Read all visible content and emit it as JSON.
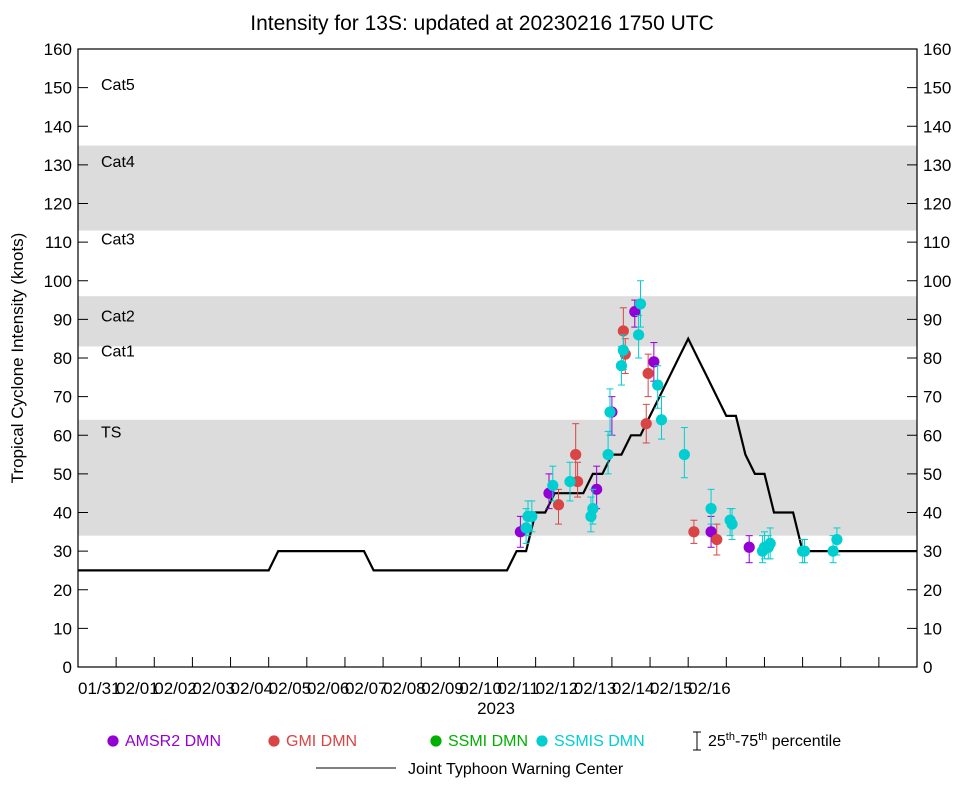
{
  "chart_data": {
    "type": "scatter",
    "title": "Intensity for 13S: updated at 20230216 1750 UTC",
    "xlabel": "2023",
    "ylabel": "Tropical Cyclone Intensity (knots)",
    "xlim": [
      0,
      22
    ],
    "ylim": [
      0,
      160
    ],
    "x_tick_values": [
      0,
      1,
      2,
      3,
      4,
      5,
      6,
      7,
      8,
      9,
      10,
      11,
      12,
      13,
      14,
      15,
      16,
      17,
      18,
      19,
      20,
      21,
      22
    ],
    "x_tick_labels": [
      "01/31",
      "02/01",
      "02/02",
      "02/03",
      "02/04",
      "02/05",
      "02/06",
      "02/07",
      "02/08",
      "02/09",
      "02/10",
      "02/11",
      "02/12",
      "02/13",
      "02/14",
      "02/15",
      "02/16"
    ],
    "x_tick_label_positions": [
      0,
      1,
      2,
      3,
      4,
      5,
      6,
      7,
      8,
      9,
      10,
      11,
      12,
      13,
      14,
      15,
      16
    ],
    "y_ticks": [
      0,
      10,
      20,
      30,
      40,
      50,
      60,
      70,
      80,
      90,
      100,
      110,
      120,
      130,
      140,
      150,
      160
    ],
    "categories_bands": [
      {
        "label": "TS",
        "lo": 34,
        "hi": 64,
        "shaded": true
      },
      {
        "label": "Cat1",
        "lo": 64,
        "hi": 83,
        "shaded": false
      },
      {
        "label": "Cat2",
        "lo": 83,
        "hi": 96,
        "shaded": true
      },
      {
        "label": "Cat3",
        "lo": 96,
        "hi": 113,
        "shaded": false
      },
      {
        "label": "Cat4",
        "lo": 113,
        "hi": 135,
        "shaded": true
      },
      {
        "label": "Cat5",
        "lo": 135,
        "hi": 160,
        "shaded": false
      }
    ],
    "band_label_values": [
      61,
      82,
      91,
      111,
      131,
      151
    ],
    "jtwc": {
      "name": "Joint Typhoon Warning Center",
      "color": "#000000",
      "x": [
        0,
        5,
        5.25,
        7.5,
        7.75,
        11.25,
        11.5,
        11.75,
        12,
        12.25,
        12.5,
        12.75,
        13,
        13.25,
        13.5,
        13.75,
        14,
        14.25,
        14.5,
        14.75,
        15,
        15.25,
        15.5,
        15.75,
        16,
        16.25,
        16.5,
        16.75,
        17,
        17.25,
        17.5,
        17.75,
        18,
        18.25,
        18.5,
        18.75,
        19,
        19.25,
        19.5,
        19.75,
        20,
        20.25,
        20.5,
        20.75,
        21,
        21.25,
        21.5,
        21.75,
        22
      ],
      "y": [
        25,
        25,
        30,
        30,
        25,
        25,
        30,
        30,
        40,
        40,
        45,
        45,
        45,
        45,
        50,
        50,
        55,
        55,
        60,
        60,
        65,
        70,
        75,
        80,
        85,
        80,
        75,
        70,
        65,
        65,
        55,
        50,
        50,
        40,
        40,
        40,
        30,
        30,
        30,
        30,
        30,
        30,
        30,
        30,
        30,
        30,
        30,
        30,
        30
      ]
    },
    "series": [
      {
        "name": "AMSR2 DMN",
        "color": "#9400D3",
        "points": [
          {
            "x": 11.6,
            "y": 35,
            "lo": 31,
            "hi": 39
          },
          {
            "x": 12.35,
            "y": 45,
            "lo": 41,
            "hi": 50
          },
          {
            "x": 13.6,
            "y": 46,
            "lo": 41,
            "hi": 52
          },
          {
            "x": 14.0,
            "y": 66,
            "lo": 60,
            "hi": 70
          },
          {
            "x": 14.6,
            "y": 92,
            "lo": 88,
            "hi": 95
          },
          {
            "x": 15.1,
            "y": 79,
            "lo": 74,
            "hi": 84
          },
          {
            "x": 16.6,
            "y": 35,
            "lo": 31,
            "hi": 39
          },
          {
            "x": 17.6,
            "y": 31,
            "lo": 27,
            "hi": 34
          }
        ]
      },
      {
        "name": "GMI DMN",
        "color": "#D94545",
        "points": [
          {
            "x": 12.6,
            "y": 42,
            "lo": 37,
            "hi": 46
          },
          {
            "x": 13.05,
            "y": 55,
            "lo": 49,
            "hi": 63
          },
          {
            "x": 13.1,
            "y": 48,
            "lo": 44,
            "hi": 53
          },
          {
            "x": 14.3,
            "y": 87,
            "lo": 82,
            "hi": 93
          },
          {
            "x": 14.35,
            "y": 81,
            "lo": 76,
            "hi": 85
          },
          {
            "x": 14.9,
            "y": 63,
            "lo": 58,
            "hi": 68
          },
          {
            "x": 14.95,
            "y": 76,
            "lo": 70,
            "hi": 81
          },
          {
            "x": 16.15,
            "y": 35,
            "lo": 32,
            "hi": 38
          },
          {
            "x": 16.75,
            "y": 33,
            "lo": 29,
            "hi": 37
          }
        ]
      },
      {
        "name": "SSMI DMN",
        "color": "#00B000",
        "points": []
      },
      {
        "name": "SSMIS DMN",
        "color": "#00CED1",
        "points": [
          {
            "x": 11.75,
            "y": 36,
            "lo": 32,
            "hi": 41
          },
          {
            "x": 11.8,
            "y": 39,
            "lo": 34,
            "hi": 43
          },
          {
            "x": 11.9,
            "y": 39,
            "lo": 35,
            "hi": 43
          },
          {
            "x": 12.45,
            "y": 47,
            "lo": 43,
            "hi": 52
          },
          {
            "x": 12.9,
            "y": 48,
            "lo": 43,
            "hi": 53
          },
          {
            "x": 13.45,
            "y": 39,
            "lo": 35,
            "hi": 44
          },
          {
            "x": 13.5,
            "y": 41,
            "lo": 37,
            "hi": 46
          },
          {
            "x": 13.9,
            "y": 55,
            "lo": 50,
            "hi": 61
          },
          {
            "x": 13.95,
            "y": 66,
            "lo": 60,
            "hi": 72
          },
          {
            "x": 14.25,
            "y": 78,
            "lo": 73,
            "hi": 83
          },
          {
            "x": 14.3,
            "y": 82,
            "lo": 77,
            "hi": 86
          },
          {
            "x": 14.7,
            "y": 86,
            "lo": 80,
            "hi": 91
          },
          {
            "x": 14.75,
            "y": 94,
            "lo": 88,
            "hi": 100
          },
          {
            "x": 15.2,
            "y": 73,
            "lo": 67,
            "hi": 78
          },
          {
            "x": 15.3,
            "y": 64,
            "lo": 59,
            "hi": 70
          },
          {
            "x": 15.9,
            "y": 55,
            "lo": 49,
            "hi": 62
          },
          {
            "x": 16.6,
            "y": 41,
            "lo": 37,
            "hi": 46
          },
          {
            "x": 17.1,
            "y": 38,
            "lo": 34,
            "hi": 41
          },
          {
            "x": 17.15,
            "y": 37,
            "lo": 33,
            "hi": 41
          },
          {
            "x": 17.95,
            "y": 30,
            "lo": 27,
            "hi": 34
          },
          {
            "x": 18.0,
            "y": 31,
            "lo": 28,
            "hi": 35
          },
          {
            "x": 18.1,
            "y": 31,
            "lo": 28,
            "hi": 34
          },
          {
            "x": 18.15,
            "y": 32,
            "lo": 28,
            "hi": 36
          },
          {
            "x": 19.0,
            "y": 30,
            "lo": 27,
            "hi": 33
          },
          {
            "x": 19.05,
            "y": 30,
            "lo": 27,
            "hi": 33
          },
          {
            "x": 19.8,
            "y": 30,
            "lo": 27,
            "hi": 34
          },
          {
            "x": 19.9,
            "y": 33,
            "lo": 29,
            "hi": 36
          }
        ]
      }
    ],
    "legend": {
      "placement": "bottom",
      "percentile_label_parts": [
        "25",
        "th",
        "-75",
        "th",
        " percentile"
      ]
    }
  }
}
